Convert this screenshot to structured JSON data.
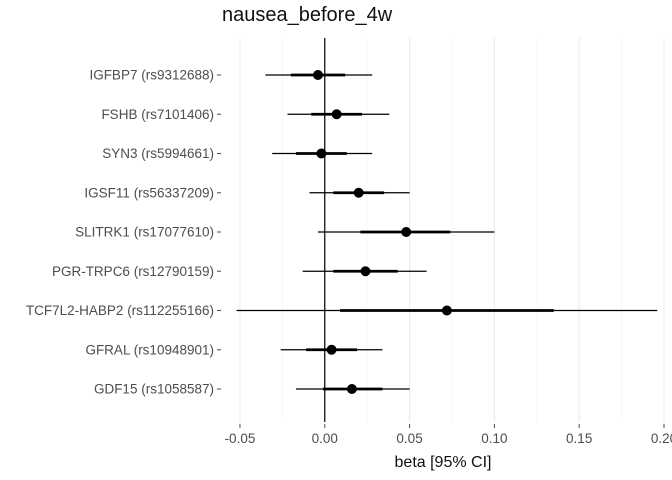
{
  "chart_data": {
    "type": "forest",
    "title": "nausea_before_4w",
    "xlabel": "beta [95% CI]",
    "xlim": [
      -0.06,
      0.2
    ],
    "xticks": [
      -0.05,
      0.0,
      0.05,
      0.1,
      0.15,
      0.2
    ],
    "xtick_labels": [
      "-0.05",
      "0.00",
      "0.05",
      "0.10",
      "0.15",
      "0.20"
    ],
    "reference_line": 0,
    "grid": true,
    "rows": [
      {
        "label": "IGFBP7 (rs9312688)",
        "beta": -0.004,
        "inner": [
          -0.02,
          0.012
        ],
        "ci": [
          -0.035,
          0.028
        ]
      },
      {
        "label": "FSHB (rs7101406)",
        "beta": 0.007,
        "inner": [
          -0.008,
          0.022
        ],
        "ci": [
          -0.022,
          0.038
        ]
      },
      {
        "label": "SYN3 (rs5994661)",
        "beta": -0.002,
        "inner": [
          -0.017,
          0.013
        ],
        "ci": [
          -0.031,
          0.028
        ]
      },
      {
        "label": "IGSF11 (rs56337209)",
        "beta": 0.02,
        "inner": [
          0.005,
          0.035
        ],
        "ci": [
          -0.009,
          0.05
        ]
      },
      {
        "label": "SLITRK1 (rs17077610)",
        "beta": 0.048,
        "inner": [
          0.021,
          0.074
        ],
        "ci": [
          -0.004,
          0.1
        ]
      },
      {
        "label": "PGR-TRPC6 (rs12790159)",
        "beta": 0.024,
        "inner": [
          0.005,
          0.043
        ],
        "ci": [
          -0.013,
          0.06
        ]
      },
      {
        "label": "TCF7L2-HABP2 (rs112255166)",
        "beta": 0.072,
        "inner": [
          0.009,
          0.135
        ],
        "ci": [
          -0.052,
          0.196
        ]
      },
      {
        "label": "GFRAL (rs10948901)",
        "beta": 0.004,
        "inner": [
          -0.011,
          0.019
        ],
        "ci": [
          -0.026,
          0.034
        ]
      },
      {
        "label": "GDF15 (rs1058587)",
        "beta": 0.016,
        "inner": [
          -0.001,
          0.034
        ],
        "ci": [
          -0.017,
          0.05
        ]
      }
    ]
  }
}
